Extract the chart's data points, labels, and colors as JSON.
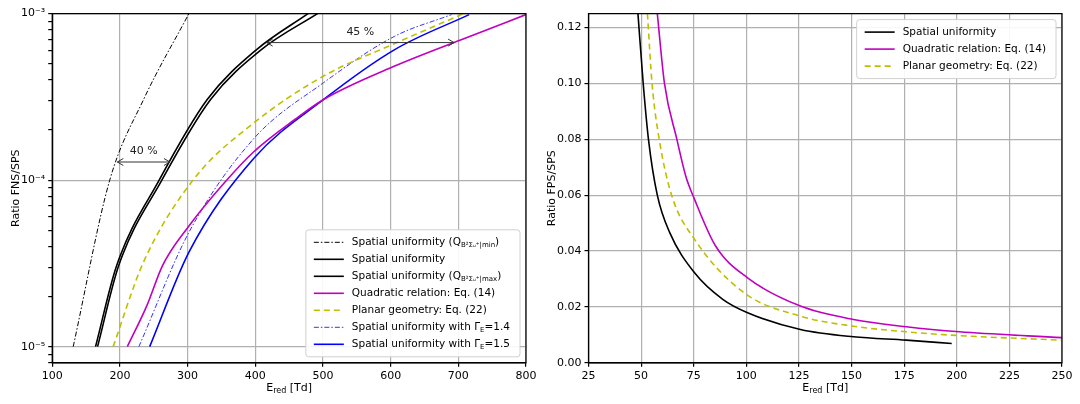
{
  "chart_data": [
    {
      "type": "line",
      "xlabel": "E$_{red}$ [Td]",
      "ylabel": "Ratio FNS/SPS",
      "log": "y",
      "grid": true,
      "legend": "bottom right",
      "xlim": [
        100,
        800
      ],
      "xticks": [
        100,
        200,
        300,
        400,
        500,
        600,
        700,
        800
      ],
      "ylim": [
        8e-06,
        0.001
      ],
      "yticks": [
        {
          "value": 8e-06,
          "label": null
        },
        {
          "value": 9e-06,
          "label": null
        },
        {
          "value": 1e-05,
          "label": "10⁻⁵"
        },
        {
          "value": 2e-05,
          "label": null
        },
        {
          "value": 3e-05,
          "label": null
        },
        {
          "value": 4e-05,
          "label": null
        },
        {
          "value": 5e-05,
          "label": null
        },
        {
          "value": 6e-05,
          "label": null
        },
        {
          "value": 7e-05,
          "label": null
        },
        {
          "value": 8e-05,
          "label": null
        },
        {
          "value": 9e-05,
          "label": null
        },
        {
          "value": 0.0001,
          "label": "10⁻⁴"
        },
        {
          "value": 0.0002,
          "label": null
        },
        {
          "value": 0.0003,
          "label": null
        },
        {
          "value": 0.0004,
          "label": null
        },
        {
          "value": 0.0005,
          "label": null
        },
        {
          "value": 0.0006,
          "label": null
        },
        {
          "value": 0.0007,
          "label": null
        },
        {
          "value": 0.0008,
          "label": null
        },
        {
          "value": 0.0009,
          "label": null
        },
        {
          "value": 0.001,
          "label": "10⁻³"
        }
      ],
      "annotations": [
        "40 %",
        "45 %"
      ],
      "series": [
        {
          "name": "Spatial uniformity (Q$_{B²Σᵤ⁺|min}$)",
          "color": "#000000",
          "line_style": "dashdot",
          "x": [
            131,
            185,
            235,
            302
          ],
          "values": [
            1e-05,
            0.0001,
            0.000305,
            0.001
          ]
        },
        {
          "name": "Spatial uniformity",
          "color": "#000000",
          "line_style": "solid",
          "x": [
            164,
            195,
            258,
            329,
            402,
            478
          ],
          "values": [
            1e-05,
            3.05e-05,
            0.0001,
            0.000305,
            0.000608,
            0.001
          ]
        },
        {
          "name": "Spatial uniformity (Q$_{B²Σᵤ⁺|max}$)",
          "color": "#000000",
          "line_style": "solid",
          "x": [
            167,
            198,
            262,
            334,
            409,
            492
          ],
          "values": [
            1e-05,
            3.05e-05,
            0.0001,
            0.000305,
            0.000608,
            0.001
          ]
        },
        {
          "name": "Quadratic relation: Eq. (14)",
          "color": "#bf00bf",
          "line_style": "solid",
          "x": [
            211,
            240,
            263,
            302,
            355,
            397,
            459,
            501,
            606,
            711,
            800
          ],
          "values": [
            1e-05,
            1.77e-05,
            3.07e-05,
            5.3e-05,
            9.7e-05,
            0.000147,
            0.000232,
            0.000305,
            0.000484,
            0.000714,
            0.000986
          ]
        },
        {
          "name": "Planar geometry: Eq. (22)",
          "color": "#bfbf00",
          "line_style": "dashed",
          "x": [
            190,
            234,
            308,
            397,
            501,
            606,
            708
          ],
          "values": [
            1e-05,
            3.16e-05,
            0.0001,
            0.000219,
            0.000422,
            0.000661,
            0.001
          ]
        },
        {
          "name": "Spatial uniformity with Γ$_{E}$=1.4",
          "color": "#3333ff",
          "line_style": "dashdot",
          "x": [
            228,
            302,
            397,
            501,
            606,
            690
          ],
          "values": [
            1e-05,
            4.86e-05,
            0.000176,
            0.000385,
            0.000731,
            0.000986
          ]
        },
        {
          "name": "Spatial uniformity with Γ$_{E}$=1.5",
          "color": "#0000ff",
          "line_style": "solid",
          "x": [
            244,
            302,
            397,
            501,
            606,
            716
          ],
          "values": [
            1e-05,
            3.69e-05,
            0.000134,
            0.000305,
            0.000608,
            0.000986
          ]
        }
      ]
    },
    {
      "type": "line",
      "xlabel": "E$_{red}$ [Td]",
      "ylabel": "Ratio FPS/SPS",
      "grid": true,
      "legend": "top right",
      "xlim": [
        25,
        250
      ],
      "xticks": [
        25,
        50,
        75,
        100,
        125,
        150,
        175,
        200,
        225,
        250
      ],
      "ylim": [
        0,
        0.125
      ],
      "yticks": [
        {
          "value": 0,
          "label": "0.00"
        },
        {
          "value": 0.02,
          "label": "0.02"
        },
        {
          "value": 0.04,
          "label": "0.04"
        },
        {
          "value": 0.06,
          "label": "0.06"
        },
        {
          "value": 0.08,
          "label": "0.08"
        },
        {
          "value": 0.1,
          "label": "0.10"
        },
        {
          "value": 0.12,
          "label": "0.12"
        }
      ],
      "series": [
        {
          "name": "Spatial uniformity",
          "color": "#000000",
          "line_style": "solid",
          "x": [
            48.5,
            51,
            53.5,
            57.7,
            63.6,
            75.4,
            88.8,
            100.6,
            125.7,
            150.9,
            176,
            197.6
          ],
          "values": [
            0.125,
            0.1,
            0.08,
            0.06,
            0.0466,
            0.0322,
            0.0227,
            0.0179,
            0.0119,
            0.0093,
            0.0081,
            0.0069
          ]
        },
        {
          "name": "Quadratic relation: Eq. (14)",
          "color": "#bf00bf",
          "line_style": "solid",
          "x": [
            57.7,
            61.1,
            67,
            71.2,
            75.4,
            85.4,
            100.6,
            125.7,
            150.9,
            176,
            201.3,
            250
          ],
          "values": [
            0.125,
            0.1,
            0.08,
            0.0669,
            0.0585,
            0.0418,
            0.0304,
            0.0203,
            0.0155,
            0.0129,
            0.0111,
            0.009
          ]
        },
        {
          "name": "Planar geometry: Eq. (22)",
          "color": "#bfbf00",
          "line_style": "dashed",
          "x": [
            53,
            55.2,
            58.6,
            64.5,
            75.4,
            98.9,
            125.7,
            150.9,
            176,
            199.6,
            250
          ],
          "values": [
            0.125,
            0.1,
            0.08,
            0.06,
            0.0442,
            0.0251,
            0.0167,
            0.0131,
            0.0111,
            0.0098,
            0.0081
          ]
        }
      ]
    }
  ]
}
